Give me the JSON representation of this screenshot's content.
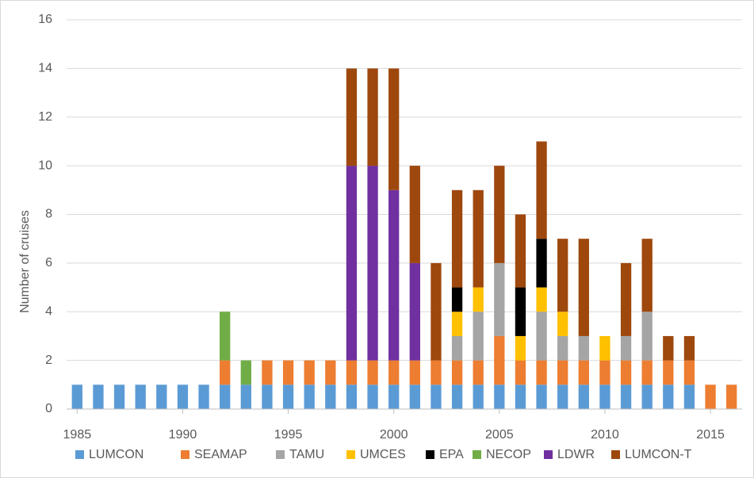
{
  "chart_data": {
    "type": "stacked_bar",
    "y_label": "Number of cruises",
    "x": [
      1985,
      1986,
      1987,
      1988,
      1989,
      1990,
      1991,
      1992,
      1993,
      1994,
      1995,
      1996,
      1997,
      1998,
      1999,
      2000,
      2001,
      2002,
      2003,
      2004,
      2005,
      2006,
      2007,
      2008,
      2009,
      2010,
      2011,
      2012,
      2013,
      2014,
      2015,
      2016
    ],
    "xlim": [
      1984.5,
      2016.5
    ],
    "xticks": [
      1985,
      1990,
      1995,
      2000,
      2005,
      2010,
      2015
    ],
    "ylim": [
      0,
      16
    ],
    "yticks": [
      0,
      2,
      4,
      6,
      8,
      10,
      12,
      14,
      16
    ],
    "grid": true,
    "legend": "bottom",
    "series": [
      {
        "name": "LUMCON",
        "color": "#5b9bd5",
        "values": [
          1,
          1,
          1,
          1,
          1,
          1,
          1,
          1,
          1,
          1,
          1,
          1,
          1,
          1,
          1,
          1,
          1,
          1,
          1,
          1,
          1,
          1,
          1,
          1,
          1,
          1,
          1,
          1,
          1,
          1,
          0,
          0
        ]
      },
      {
        "name": "SEAMAP",
        "color": "#ed7d31",
        "values": [
          0,
          0,
          0,
          0,
          0,
          0,
          0,
          1,
          0,
          1,
          1,
          1,
          1,
          1,
          1,
          1,
          1,
          1,
          1,
          1,
          2,
          1,
          1,
          1,
          1,
          1,
          1,
          1,
          1,
          1,
          1,
          1
        ]
      },
      {
        "name": "TAMU",
        "color": "#a5a5a5",
        "values": [
          0,
          0,
          0,
          0,
          0,
          0,
          0,
          0,
          0,
          0,
          0,
          0,
          0,
          0,
          0,
          0,
          0,
          0,
          1,
          2,
          3,
          0,
          2,
          1,
          1,
          0,
          1,
          2,
          0,
          0,
          0,
          0
        ]
      },
      {
        "name": "UMCES",
        "color": "#ffc000",
        "values": [
          0,
          0,
          0,
          0,
          0,
          0,
          0,
          0,
          0,
          0,
          0,
          0,
          0,
          0,
          0,
          0,
          0,
          0,
          1,
          1,
          0,
          1,
          1,
          1,
          0,
          1,
          0,
          0,
          0,
          0,
          0,
          0
        ]
      },
      {
        "name": "EPA",
        "color": "#000000",
        "values": [
          0,
          0,
          0,
          0,
          0,
          0,
          0,
          0,
          0,
          0,
          0,
          0,
          0,
          0,
          0,
          0,
          0,
          0,
          1,
          0,
          0,
          2,
          2,
          0,
          0,
          0,
          0,
          0,
          0,
          0,
          0,
          0
        ]
      },
      {
        "name": "NECOP",
        "color": "#70ad47",
        "values": [
          0,
          0,
          0,
          0,
          0,
          0,
          0,
          2,
          1,
          0,
          0,
          0,
          0,
          0,
          0,
          0,
          0,
          0,
          0,
          0,
          0,
          0,
          0,
          0,
          0,
          0,
          0,
          0,
          0,
          0,
          0,
          0
        ]
      },
      {
        "name": "LDWR",
        "color": "#7030a0",
        "values": [
          0,
          0,
          0,
          0,
          0,
          0,
          0,
          0,
          0,
          0,
          0,
          0,
          0,
          8,
          8,
          7,
          4,
          0,
          0,
          0,
          0,
          0,
          0,
          0,
          0,
          0,
          0,
          0,
          0,
          0,
          0,
          0
        ]
      },
      {
        "name": "LUMCON-T",
        "color": "#9e480e",
        "values": [
          0,
          0,
          0,
          0,
          0,
          0,
          0,
          0,
          0,
          0,
          0,
          0,
          0,
          4,
          4,
          5,
          4,
          4,
          4,
          4,
          4,
          3,
          4,
          3,
          4,
          0,
          3,
          3,
          1,
          1,
          0,
          0
        ]
      }
    ]
  }
}
